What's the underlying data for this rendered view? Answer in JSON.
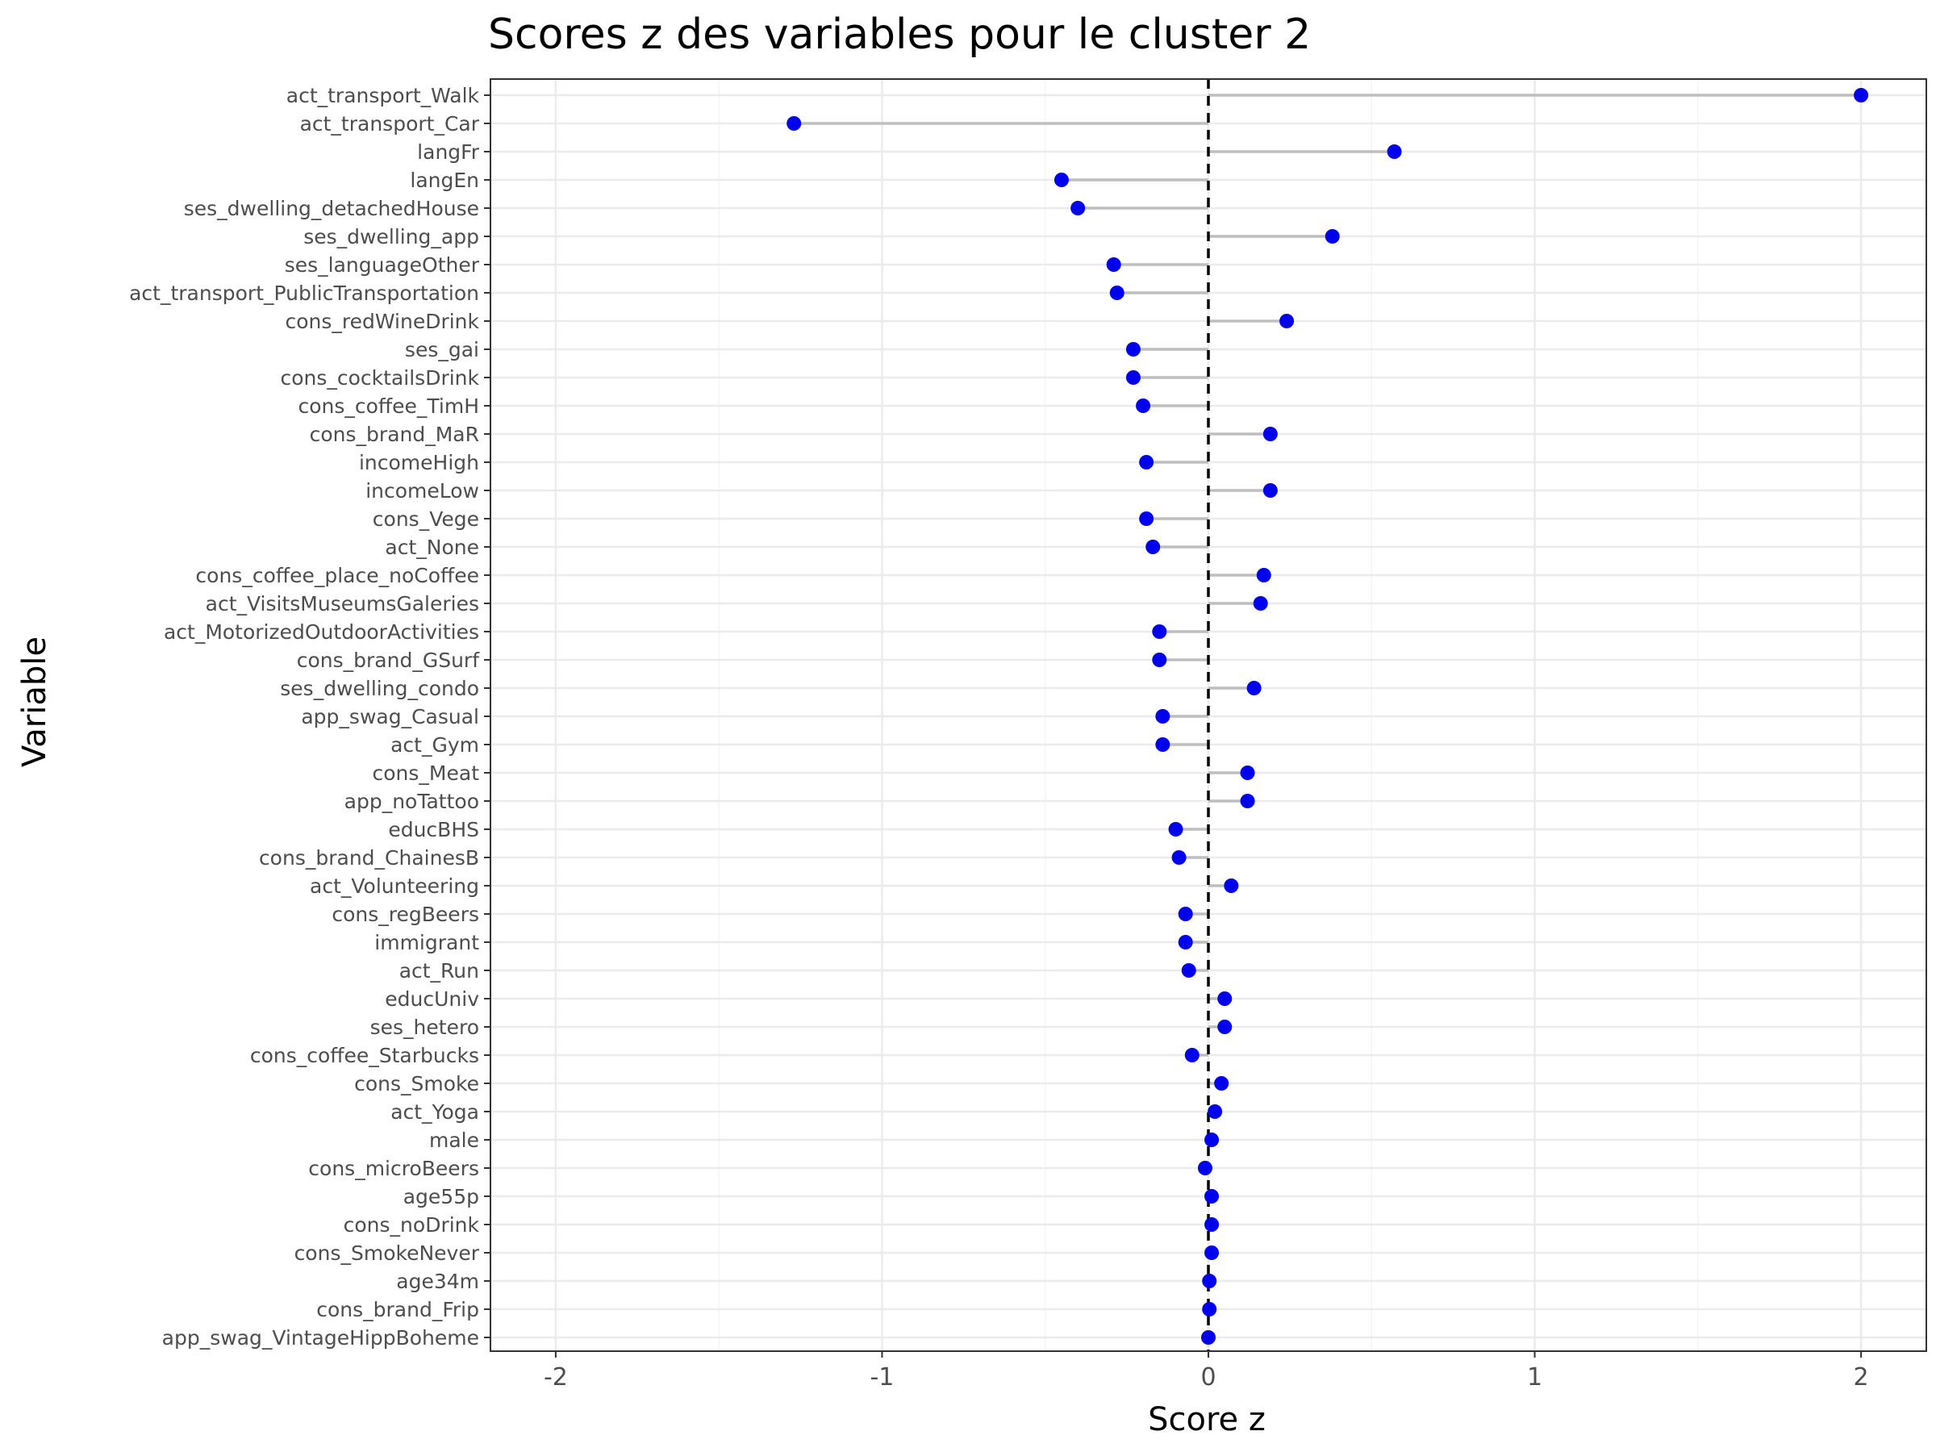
{
  "chart_data": {
    "type": "lollipop",
    "title": "Scores z des variables pour le cluster 2",
    "xlabel": "Score z",
    "ylabel": "Variable",
    "xlim": [
      -2.2,
      2.2
    ],
    "x_ticks": [
      -2,
      -1,
      0,
      1,
      2
    ],
    "x_tick_labels": [
      "-2",
      "-1",
      "0",
      "1",
      "2"
    ],
    "reference_line": 0,
    "grid": true,
    "point_color": "#0000ee",
    "stem_color": "#bebebe",
    "categories": [
      "act_transport_Walk",
      "act_transport_Car",
      "langFr",
      "langEn",
      "ses_dwelling_detachedHouse",
      "ses_dwelling_app",
      "ses_languageOther",
      "act_transport_PublicTransportation",
      "cons_redWineDrink",
      "ses_gai",
      "cons_cocktailsDrink",
      "cons_coffee_TimH",
      "cons_brand_MaR",
      "incomeHigh",
      "incomeLow",
      "cons_Vege",
      "act_None",
      "cons_coffee_place_noCoffee",
      "act_VisitsMuseumsGaleries",
      "act_MotorizedOutdoorActivities",
      "cons_brand_GSurf",
      "ses_dwelling_condo",
      "app_swag_Casual",
      "act_Gym",
      "cons_Meat",
      "app_noTattoo",
      "educBHS",
      "cons_brand_ChainesB",
      "act_Volunteering",
      "cons_regBeers",
      "immigrant",
      "act_Run",
      "educUniv",
      "ses_hetero",
      "cons_coffee_Starbucks",
      "cons_Smoke",
      "act_Yoga",
      "male",
      "cons_microBeers",
      "age55p",
      "cons_noDrink",
      "cons_SmokeNever",
      "age34m",
      "cons_brand_Frip",
      "app_swag_VintageHippBoheme"
    ],
    "values": [
      2.0,
      -1.27,
      0.57,
      -0.45,
      -0.4,
      0.38,
      -0.29,
      -0.28,
      0.24,
      -0.23,
      -0.23,
      -0.2,
      0.19,
      -0.19,
      0.19,
      -0.19,
      -0.17,
      0.17,
      0.16,
      -0.15,
      -0.15,
      0.14,
      -0.14,
      -0.14,
      0.12,
      0.12,
      -0.1,
      -0.09,
      0.07,
      -0.07,
      -0.07,
      -0.06,
      0.05,
      0.05,
      -0.05,
      0.04,
      0.02,
      0.01,
      -0.01,
      0.01,
      0.01,
      0.01,
      0.003,
      0.003,
      0.0
    ]
  }
}
